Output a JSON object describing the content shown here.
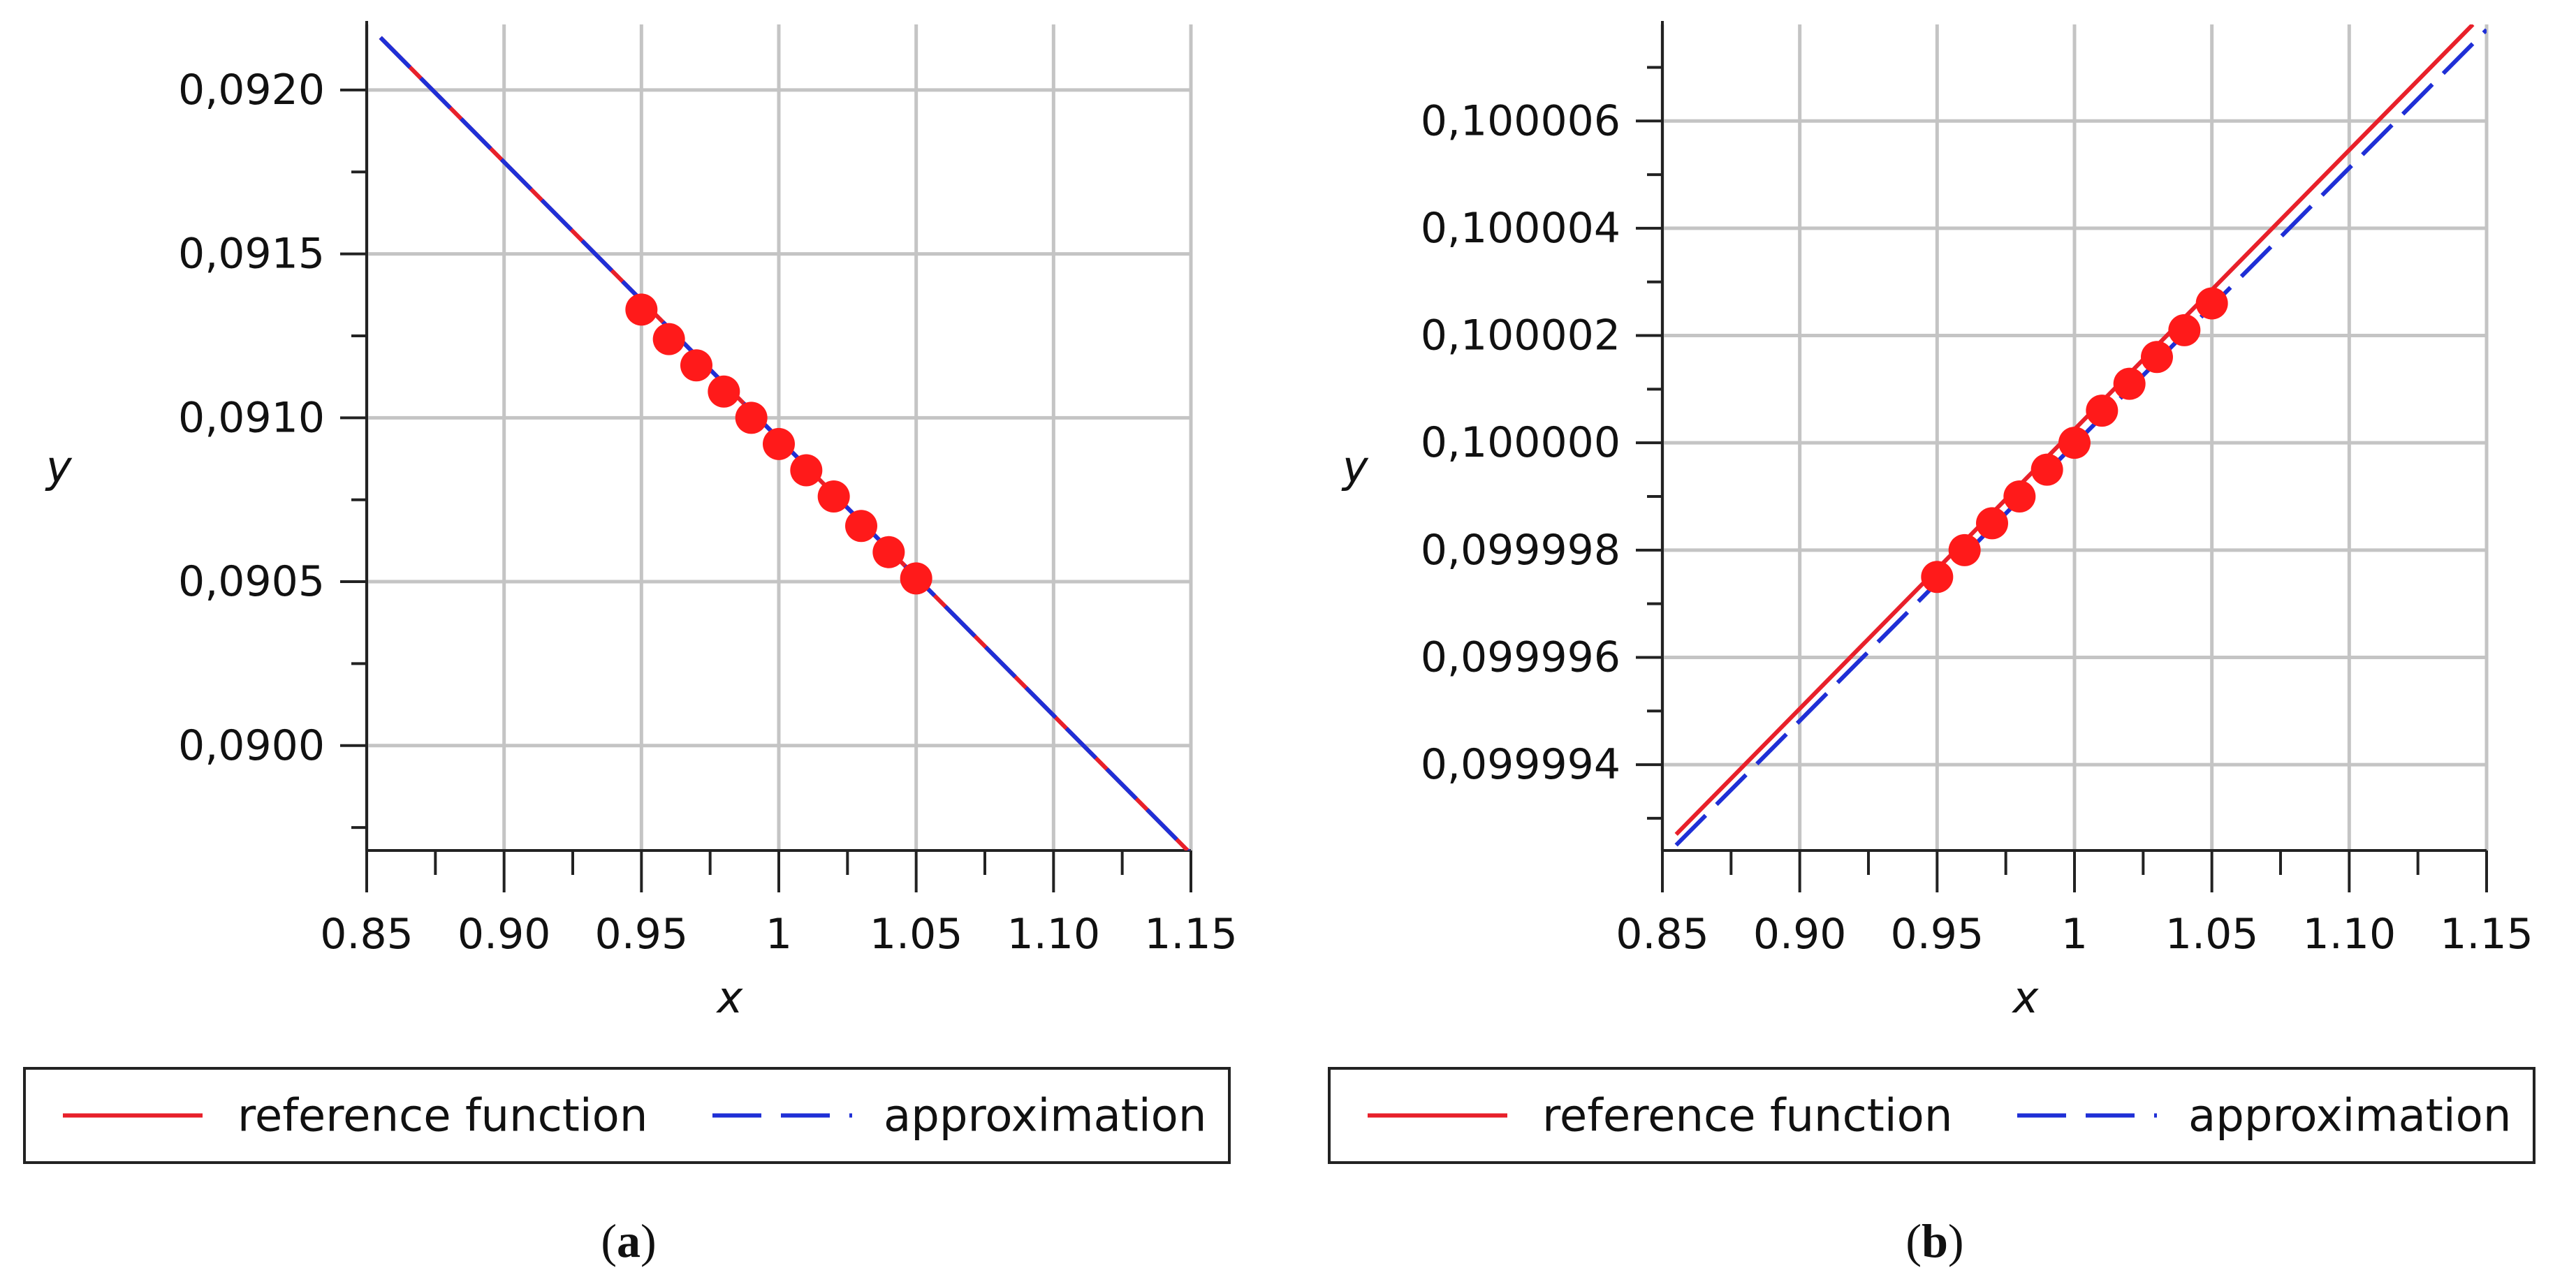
{
  "chart_data": [
    {
      "type": "line",
      "panel_label": "a",
      "xlabel": "x",
      "ylabel": "y",
      "xlim": [
        0.85,
        1.15
      ],
      "ylim": [
        0.08968,
        0.0922
      ],
      "x_ticks": [
        0.85,
        0.9,
        0.95,
        1.0,
        1.05,
        1.1,
        1.15
      ],
      "x_tick_labels": [
        "0.85",
        "0.90",
        "0.95",
        "1",
        "1.05",
        "1.10",
        "1.15"
      ],
      "y_ticks": [
        0.09,
        0.0905,
        0.091,
        0.0915,
        0.092
      ],
      "y_tick_labels": [
        "0,0900",
        "0,0905",
        "0,0910",
        "0,0915",
        "0,0920"
      ],
      "grid": true,
      "series": [
        {
          "name": "reference function",
          "style": "solid",
          "color": "#e8202a",
          "x": [
            0.855,
            1.15
          ],
          "y": [
            0.09216,
            0.08967
          ]
        },
        {
          "name": "approximation",
          "style": "dashed",
          "color": "#1f2fd6",
          "x": [
            0.855,
            1.15
          ],
          "y": [
            0.09216,
            0.08967
          ]
        }
      ],
      "points": {
        "color": "#ff1a1a",
        "x": [
          0.95,
          0.96,
          0.97,
          0.98,
          0.99,
          1.0,
          1.01,
          1.02,
          1.03,
          1.04,
          1.05
        ],
        "y": [
          0.09133,
          0.09124,
          0.09116,
          0.09108,
          0.091,
          0.09092,
          0.09084,
          0.09076,
          0.09067,
          0.09059,
          0.09051
        ]
      },
      "legend": {
        "entries": [
          "reference function",
          "approximation"
        ],
        "location": "below"
      }
    },
    {
      "type": "line",
      "panel_label": "b",
      "xlabel": "x",
      "ylabel": "y",
      "xlim": [
        0.85,
        1.15
      ],
      "ylim": [
        0.0999924,
        0.1000078
      ],
      "x_ticks": [
        0.85,
        0.9,
        0.95,
        1.0,
        1.05,
        1.1,
        1.15
      ],
      "x_tick_labels": [
        "0.85",
        "0.90",
        "0.95",
        "1",
        "1.05",
        "1.10",
        "1.15"
      ],
      "y_ticks": [
        0.099994,
        0.099996,
        0.099998,
        0.1,
        0.100002,
        0.100004,
        0.100006
      ],
      "y_tick_labels": [
        "0,099994",
        "0,099996",
        "0,099998",
        "0,100000",
        "0,100002",
        "0,100004",
        "0,100006"
      ],
      "grid": true,
      "series": [
        {
          "name": "reference function",
          "style": "solid",
          "color": "#e8202a",
          "x": [
            0.855,
            1.145
          ],
          "y": [
            0.0999927,
            0.1000078
          ]
        },
        {
          "name": "approximation",
          "style": "dashed",
          "color": "#1f2fd6",
          "x": [
            0.855,
            1.15
          ],
          "y": [
            0.0999925,
            0.1000077
          ]
        }
      ],
      "points": {
        "color": "#ff1a1a",
        "x": [
          0.95,
          0.96,
          0.97,
          0.98,
          0.99,
          1.0,
          1.01,
          1.02,
          1.03,
          1.04,
          1.05
        ],
        "y": [
          0.0999975,
          0.099998,
          0.0999985,
          0.099999,
          0.0999995,
          0.1,
          0.1000006,
          0.1000011,
          0.1000016,
          0.1000021,
          0.1000026
        ]
      },
      "legend": {
        "entries": [
          "reference function",
          "approximation"
        ],
        "location": "below"
      }
    }
  ]
}
